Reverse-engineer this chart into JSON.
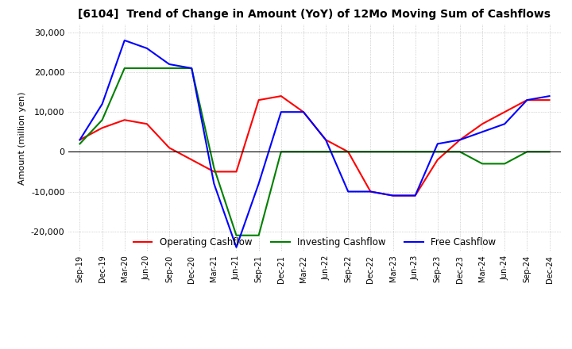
{
  "title": "[6104]  Trend of Change in Amount (YoY) of 12Mo Moving Sum of Cashflows",
  "ylabel": "Amount (million yen)",
  "ylim": [
    -25000,
    32000
  ],
  "yticks": [
    -20000,
    -10000,
    0,
    10000,
    20000,
    30000
  ],
  "x_labels": [
    "Sep-19",
    "Dec-19",
    "Mar-20",
    "Jun-20",
    "Sep-20",
    "Dec-20",
    "Mar-21",
    "Jun-21",
    "Sep-21",
    "Dec-21",
    "Mar-22",
    "Jun-22",
    "Sep-22",
    "Dec-22",
    "Mar-23",
    "Jun-23",
    "Sep-23",
    "Dec-23",
    "Mar-24",
    "Jun-24",
    "Sep-24",
    "Dec-24"
  ],
  "operating": [
    3000,
    6000,
    8000,
    7000,
    1000,
    -2000,
    -5000,
    -5000,
    13000,
    14000,
    10000,
    3000,
    0,
    -10000,
    -11000,
    -11000,
    -2000,
    3000,
    7000,
    10000,
    13000,
    13000
  ],
  "investing": [
    2000,
    8000,
    21000,
    21000,
    21000,
    21000,
    -4000,
    -21000,
    -21000,
    0,
    0,
    0,
    0,
    0,
    0,
    0,
    0,
    0,
    -3000,
    -3000,
    0,
    0
  ],
  "free": [
    3000,
    12000,
    28000,
    26000,
    22000,
    21000,
    -8000,
    -24000,
    -8000,
    10000,
    10000,
    3000,
    -10000,
    -10000,
    -11000,
    -11000,
    2000,
    3000,
    5000,
    7000,
    13000,
    14000
  ],
  "operating_color": "#ff0000",
  "investing_color": "#008000",
  "free_color": "#0000ff",
  "legend_labels": [
    "Operating Cashflow",
    "Investing Cashflow",
    "Free Cashflow"
  ],
  "background_color": "#ffffff",
  "grid_color": "#b0b0b0"
}
